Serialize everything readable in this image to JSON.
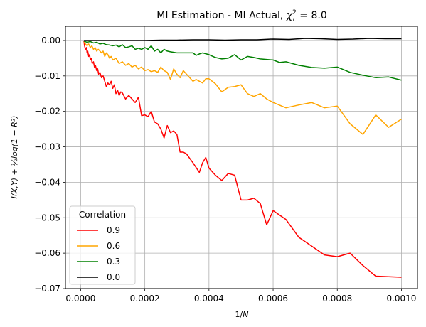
{
  "chart_data": {
    "type": "line",
    "title": {
      "prefix": "MI Estimation - MI Actual, ",
      "chi": "χ",
      "sup": "2",
      "sub": "c",
      "suffix": " = 8.0"
    },
    "xlabel": {
      "prefix": "1/",
      "italic": "N"
    },
    "ylabel": "I(X,Y) + ½log(1 − R²)",
    "xlim": [
      -4.75e-05,
      0.00105
    ],
    "ylim": [
      -0.07,
      0.004
    ],
    "xticks": [
      {
        "value": 0.0,
        "label": "0.0000"
      },
      {
        "value": 0.0002,
        "label": "0.0002"
      },
      {
        "value": 0.0004,
        "label": "0.0004"
      },
      {
        "value": 0.0006,
        "label": "0.0006"
      },
      {
        "value": 0.0008,
        "label": "0.0008"
      },
      {
        "value": 0.001,
        "label": "0.0010"
      }
    ],
    "yticks": [
      {
        "value": 0.0,
        "label": "0.00"
      },
      {
        "value": -0.01,
        "label": "−0.01"
      },
      {
        "value": -0.02,
        "label": "−0.02"
      },
      {
        "value": -0.03,
        "label": "−0.03"
      },
      {
        "value": -0.04,
        "label": "−0.04"
      },
      {
        "value": -0.05,
        "label": "−0.05"
      },
      {
        "value": -0.06,
        "label": "−0.06"
      },
      {
        "value": -0.07,
        "label": "−0.07"
      }
    ],
    "grid": true,
    "legend": {
      "title": "Correlation",
      "placement": "lower-left"
    },
    "series": [
      {
        "name": "0.9",
        "color": "#ff0000",
        "points": [
          [
            1e-05,
            0.0
          ],
          [
            1.2e-05,
            -0.0015
          ],
          [
            1.5e-05,
            -0.0025
          ],
          [
            1.8e-05,
            -0.002
          ],
          [
            2e-05,
            -0.0035
          ],
          [
            2.2e-05,
            -0.003
          ],
          [
            2.5e-05,
            -0.0045
          ],
          [
            2.8e-05,
            -0.004
          ],
          [
            3e-05,
            -0.0055
          ],
          [
            3.3e-05,
            -0.005
          ],
          [
            3.6e-05,
            -0.0065
          ],
          [
            4e-05,
            -0.006
          ],
          [
            4.3e-05,
            -0.0075
          ],
          [
            4.6e-05,
            -0.007
          ],
          [
            5e-05,
            -0.0085
          ],
          [
            5.3e-05,
            -0.008
          ],
          [
            5.6e-05,
            -0.0095
          ],
          [
            6e-05,
            -0.009
          ],
          [
            6.5e-05,
            -0.0105
          ],
          [
            7e-05,
            -0.01
          ],
          [
            7.5e-05,
            -0.0115
          ],
          [
            8e-05,
            -0.013
          ],
          [
            8.5e-05,
            -0.012
          ],
          [
            9e-05,
            -0.0125
          ],
          [
            9.5e-05,
            -0.0115
          ],
          [
            0.0001,
            -0.0135
          ],
          [
            0.000105,
            -0.0125
          ],
          [
            0.00011,
            -0.015
          ],
          [
            0.000115,
            -0.014
          ],
          [
            0.00012,
            -0.0155
          ],
          [
            0.000125,
            -0.0145
          ],
          [
            0.00013,
            -0.0148
          ],
          [
            0.00014,
            -0.0165
          ],
          [
            0.00015,
            -0.0155
          ],
          [
            0.00016,
            -0.0165
          ],
          [
            0.00017,
            -0.0175
          ],
          [
            0.00018,
            -0.016
          ],
          [
            0.00019,
            -0.0212
          ],
          [
            0.0002,
            -0.021
          ],
          [
            0.00021,
            -0.0215
          ],
          [
            0.00022,
            -0.02
          ],
          [
            0.00023,
            -0.023
          ],
          [
            0.00024,
            -0.0235
          ],
          [
            0.00025,
            -0.025
          ],
          [
            0.00026,
            -0.0275
          ],
          [
            0.00027,
            -0.024
          ],
          [
            0.00028,
            -0.026
          ],
          [
            0.00029,
            -0.0255
          ],
          [
            0.0003,
            -0.0265
          ],
          [
            0.00031,
            -0.0315
          ],
          [
            0.00032,
            -0.0315
          ],
          [
            0.00033,
            -0.032
          ],
          [
            0.00035,
            -0.0345
          ],
          [
            0.00037,
            -0.0372
          ],
          [
            0.00038,
            -0.0345
          ],
          [
            0.00039,
            -0.033
          ],
          [
            0.0004,
            -0.036
          ],
          [
            0.00042,
            -0.038
          ],
          [
            0.00044,
            -0.0395
          ],
          [
            0.00046,
            -0.0375
          ],
          [
            0.00048,
            -0.038
          ],
          [
            0.0005,
            -0.045
          ],
          [
            0.00052,
            -0.045
          ],
          [
            0.00054,
            -0.0445
          ],
          [
            0.00056,
            -0.046
          ],
          [
            0.00058,
            -0.052
          ],
          [
            0.0006,
            -0.048
          ],
          [
            0.00064,
            -0.0505
          ],
          [
            0.00068,
            -0.0555
          ],
          [
            0.00072,
            -0.058
          ],
          [
            0.00076,
            -0.0605
          ],
          [
            0.0008,
            -0.061
          ],
          [
            0.00084,
            -0.06
          ],
          [
            0.00088,
            -0.0635
          ],
          [
            0.00092,
            -0.0665
          ],
          [
            0.001,
            -0.0668
          ]
        ]
      },
      {
        "name": "0.6",
        "color": "#ffa500",
        "points": [
          [
            1e-05,
            -0.0005
          ],
          [
            1.5e-05,
            -0.001
          ],
          [
            2e-05,
            -0.0015
          ],
          [
            2.5e-05,
            -0.001
          ],
          [
            3e-05,
            -0.002
          ],
          [
            3.5e-05,
            -0.0015
          ],
          [
            4e-05,
            -0.0025
          ],
          [
            4.5e-05,
            -0.002
          ],
          [
            5e-05,
            -0.003
          ],
          [
            5.5e-05,
            -0.0025
          ],
          [
            6e-05,
            -0.003
          ],
          [
            6.5e-05,
            -0.0035
          ],
          [
            7e-05,
            -0.003
          ],
          [
            7.5e-05,
            -0.0045
          ],
          [
            8e-05,
            -0.0035
          ],
          [
            8.5e-05,
            -0.004
          ],
          [
            9e-05,
            -0.005
          ],
          [
            9.5e-05,
            -0.0045
          ],
          [
            0.0001,
            -0.0055
          ],
          [
            0.00011,
            -0.005
          ],
          [
            0.00012,
            -0.0065
          ],
          [
            0.00013,
            -0.006
          ],
          [
            0.00014,
            -0.007
          ],
          [
            0.00015,
            -0.0065
          ],
          [
            0.00016,
            -0.0075
          ],
          [
            0.00017,
            -0.007
          ],
          [
            0.00018,
            -0.008
          ],
          [
            0.00019,
            -0.0075
          ],
          [
            0.0002,
            -0.0085
          ],
          [
            0.00021,
            -0.0082
          ],
          [
            0.00022,
            -0.0088
          ],
          [
            0.00023,
            -0.0085
          ],
          [
            0.00024,
            -0.009
          ],
          [
            0.00025,
            -0.0075
          ],
          [
            0.00026,
            -0.0085
          ],
          [
            0.00027,
            -0.009
          ],
          [
            0.00028,
            -0.011
          ],
          [
            0.00029,
            -0.008
          ],
          [
            0.0003,
            -0.0095
          ],
          [
            0.00031,
            -0.0105
          ],
          [
            0.00032,
            -0.0085
          ],
          [
            0.00033,
            -0.0095
          ],
          [
            0.00035,
            -0.0115
          ],
          [
            0.00036,
            -0.011
          ],
          [
            0.00038,
            -0.012
          ],
          [
            0.00039,
            -0.0108
          ],
          [
            0.0004,
            -0.0108
          ],
          [
            0.00042,
            -0.0122
          ],
          [
            0.00044,
            -0.0145
          ],
          [
            0.00046,
            -0.0132
          ],
          [
            0.00048,
            -0.013
          ],
          [
            0.0005,
            -0.0125
          ],
          [
            0.00052,
            -0.015
          ],
          [
            0.00054,
            -0.0158
          ],
          [
            0.00056,
            -0.015
          ],
          [
            0.00058,
            -0.0165
          ],
          [
            0.0006,
            -0.0175
          ],
          [
            0.00064,
            -0.019
          ],
          [
            0.00068,
            -0.0182
          ],
          [
            0.00072,
            -0.0175
          ],
          [
            0.00076,
            -0.019
          ],
          [
            0.0008,
            -0.0185
          ],
          [
            0.00084,
            -0.0235
          ],
          [
            0.00088,
            -0.0265
          ],
          [
            0.00092,
            -0.021
          ],
          [
            0.00096,
            -0.0245
          ],
          [
            0.001,
            -0.0222
          ]
        ]
      },
      {
        "name": "0.3",
        "color": "#008000",
        "points": [
          [
            1e-05,
            -0.0002
          ],
          [
            2e-05,
            -0.0005
          ],
          [
            3e-05,
            -0.0003
          ],
          [
            4e-05,
            -0.0007
          ],
          [
            5e-05,
            -0.0005
          ],
          [
            6e-05,
            -0.001
          ],
          [
            7e-05,
            -0.0008
          ],
          [
            8e-05,
            -0.0012
          ],
          [
            9e-05,
            -0.0013
          ],
          [
            0.0001,
            -0.0015
          ],
          [
            0.00011,
            -0.0013
          ],
          [
            0.00012,
            -0.0018
          ],
          [
            0.00013,
            -0.0012
          ],
          [
            0.00014,
            -0.002
          ],
          [
            0.00015,
            -0.0018
          ],
          [
            0.00016,
            -0.0015
          ],
          [
            0.00017,
            -0.0025
          ],
          [
            0.00018,
            -0.0022
          ],
          [
            0.00019,
            -0.0025
          ],
          [
            0.0002,
            -0.002
          ],
          [
            0.00021,
            -0.0025
          ],
          [
            0.00022,
            -0.0015
          ],
          [
            0.00023,
            -0.003
          ],
          [
            0.00024,
            -0.0025
          ],
          [
            0.00025,
            -0.0035
          ],
          [
            0.00026,
            -0.0025
          ],
          [
            0.00027,
            -0.003
          ],
          [
            0.00028,
            -0.0032
          ],
          [
            0.0003,
            -0.0035
          ],
          [
            0.00032,
            -0.0035
          ],
          [
            0.00034,
            -0.0035
          ],
          [
            0.00035,
            -0.0035
          ],
          [
            0.00036,
            -0.0042
          ],
          [
            0.00037,
            -0.0038
          ],
          [
            0.00038,
            -0.0035
          ],
          [
            0.0004,
            -0.004
          ],
          [
            0.00042,
            -0.0048
          ],
          [
            0.00044,
            -0.0052
          ],
          [
            0.00046,
            -0.005
          ],
          [
            0.00048,
            -0.004
          ],
          [
            0.0005,
            -0.0055
          ],
          [
            0.00052,
            -0.0045
          ],
          [
            0.00054,
            -0.0048
          ],
          [
            0.00056,
            -0.0052
          ],
          [
            0.0006,
            -0.0055
          ],
          [
            0.00062,
            -0.0062
          ],
          [
            0.00064,
            -0.006
          ],
          [
            0.00068,
            -0.007
          ],
          [
            0.00072,
            -0.0076
          ],
          [
            0.00076,
            -0.0078
          ],
          [
            0.0008,
            -0.0075
          ],
          [
            0.00084,
            -0.009
          ],
          [
            0.00088,
            -0.0098
          ],
          [
            0.00092,
            -0.0105
          ],
          [
            0.00096,
            -0.0103
          ],
          [
            0.001,
            -0.0112
          ]
        ]
      },
      {
        "name": "0.0",
        "color": "#000000",
        "points": [
          [
            1e-05,
            0.0
          ],
          [
            5e-05,
            0.0
          ],
          [
            0.0001,
            0.0
          ],
          [
            0.00015,
            0.0
          ],
          [
            0.0002,
            0.0
          ],
          [
            0.00025,
            0.0001
          ],
          [
            0.0003,
            0.0001
          ],
          [
            0.00035,
            0.0002
          ],
          [
            0.0004,
            0.0002
          ],
          [
            0.00045,
            0.0001
          ],
          [
            0.0005,
            0.0002
          ],
          [
            0.00055,
            0.0002
          ],
          [
            0.0006,
            0.0004
          ],
          [
            0.00065,
            0.0003
          ],
          [
            0.0007,
            0.0006
          ],
          [
            0.00075,
            0.0005
          ],
          [
            0.0008,
            0.0003
          ],
          [
            0.00085,
            0.0004
          ],
          [
            0.0009,
            0.0006
          ],
          [
            0.00095,
            0.0005
          ],
          [
            0.001,
            0.0005
          ]
        ]
      }
    ]
  }
}
